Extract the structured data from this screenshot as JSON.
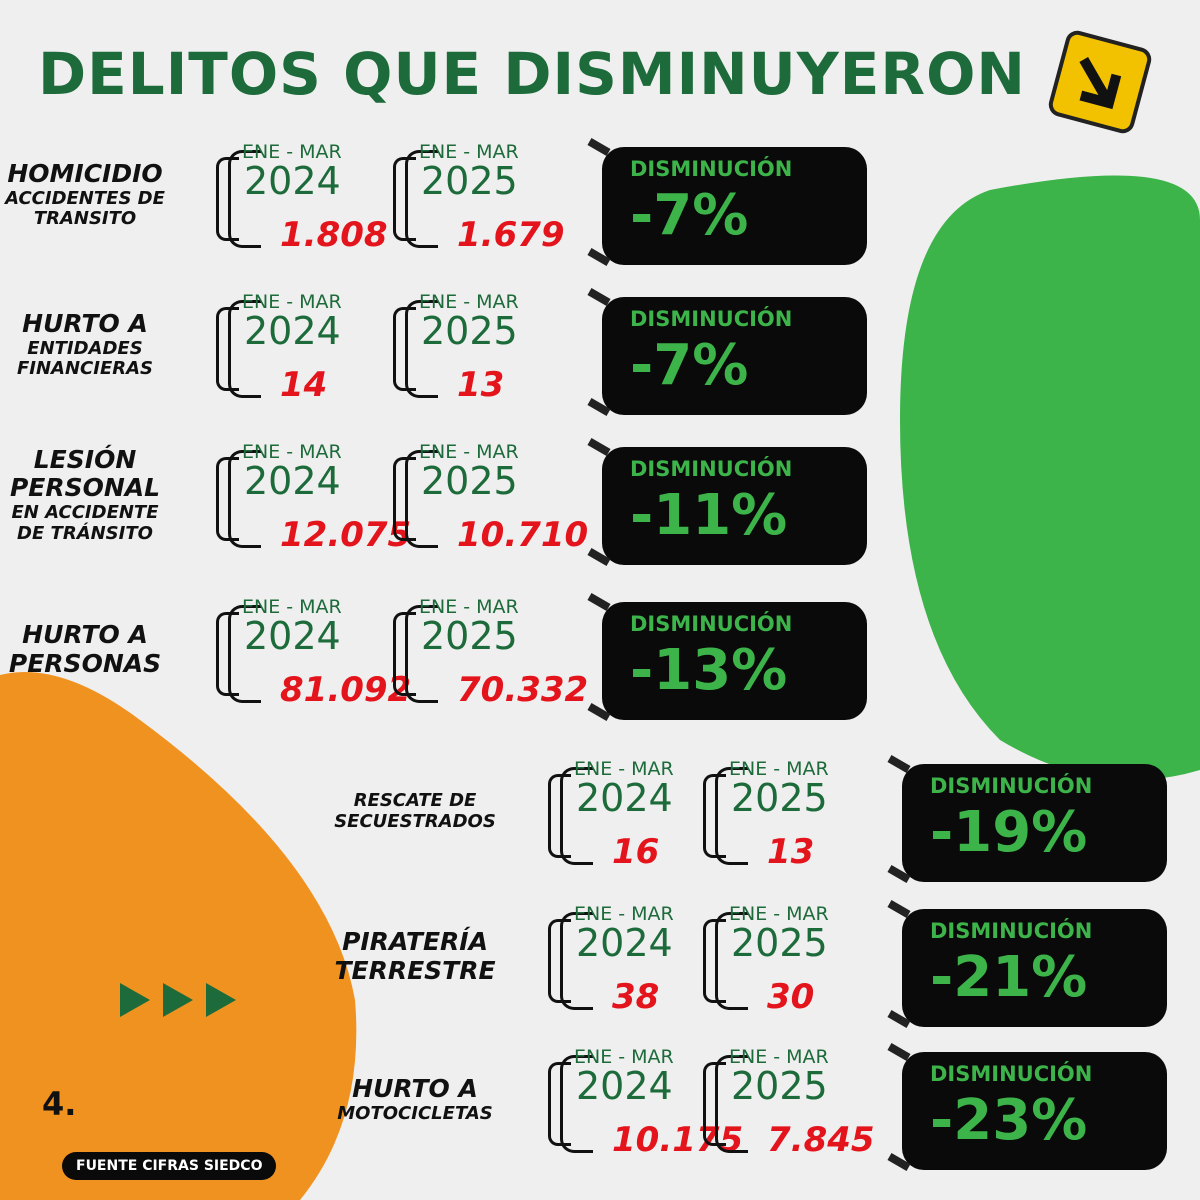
{
  "header": {
    "title": "DELITOS QUE DISMINUYERON"
  },
  "items": [
    {
      "label": {
        "main": [
          "HOMICIDIO"
        ],
        "sub": [
          "ACCIDENTES DE",
          "TRANSITO"
        ]
      },
      "periods": [
        {
          "range": "ENE - MAR",
          "year": "2024",
          "value": "1.808"
        },
        {
          "range": "ENE - MAR",
          "year": "2025",
          "value": "1.679"
        }
      ],
      "change": {
        "label": "DISMINUCIÓN",
        "value": "-7%"
      }
    },
    {
      "label": {
        "main": [
          "HURTO A"
        ],
        "sub": [
          "ENTIDADES",
          "FINANCIERAS"
        ]
      },
      "periods": [
        {
          "range": "ENE - MAR",
          "year": "2024",
          "value": "14"
        },
        {
          "range": "ENE - MAR",
          "year": "2025",
          "value": "13"
        }
      ],
      "change": {
        "label": "DISMINUCIÓN",
        "value": "-7%"
      }
    },
    {
      "label": {
        "main": [
          "LESIÓN",
          "PERSONAL"
        ],
        "sub": [
          "EN ACCIDENTE",
          "DE TRÁNSITO"
        ]
      },
      "periods": [
        {
          "range": "ENE - MAR",
          "year": "2024",
          "value": "12.075"
        },
        {
          "range": "ENE - MAR",
          "year": "2025",
          "value": "10.710"
        }
      ],
      "change": {
        "label": "DISMINUCIÓN",
        "value": "-11%"
      }
    },
    {
      "label": {
        "main": [
          "HURTO A",
          "PERSONAS"
        ],
        "sub": []
      },
      "periods": [
        {
          "range": "ENE - MAR",
          "year": "2024",
          "value": "81.092"
        },
        {
          "range": "ENE - MAR",
          "year": "2025",
          "value": "70.332"
        }
      ],
      "change": {
        "label": "DISMINUCIÓN",
        "value": "-13%"
      }
    },
    {
      "label": {
        "main": [],
        "sub": [
          "RESCATE DE",
          "SECUESTRADOS"
        ]
      },
      "periods": [
        {
          "range": "ENE - MAR",
          "year": "2024",
          "value": "16"
        },
        {
          "range": "ENE - MAR",
          "year": "2025",
          "value": "13"
        }
      ],
      "change": {
        "label": "DISMINUCIÓN",
        "value": "-19%"
      }
    },
    {
      "label": {
        "main": [
          "PIRATERÍA",
          "TERRESTRE"
        ],
        "sub": []
      },
      "periods": [
        {
          "range": "ENE - MAR",
          "year": "2024",
          "value": "38"
        },
        {
          "range": "ENE - MAR",
          "year": "2025",
          "value": "30"
        }
      ],
      "change": {
        "label": "DISMINUCIÓN",
        "value": "-21%"
      }
    },
    {
      "label": {
        "main": [
          "HURTO A"
        ],
        "sub": [
          "MOTOCICLETAS"
        ]
      },
      "periods": [
        {
          "range": "ENE - MAR",
          "year": "2024",
          "value": "10.175"
        },
        {
          "range": "ENE - MAR",
          "year": "2025",
          "value": "7.845"
        }
      ],
      "change": {
        "label": "DISMINUCIÓN",
        "value": "-23%"
      }
    }
  ],
  "page_number": "4.",
  "footer": {
    "source": "FUENTE CIFRAS SIEDCO"
  }
}
